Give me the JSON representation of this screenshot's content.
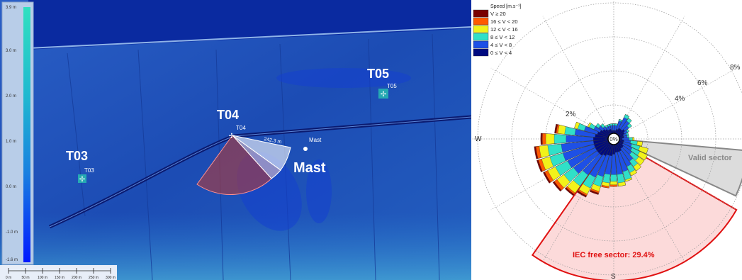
{
  "map": {
    "legend_ticks": [
      "3.0 m",
      "2.0 m",
      "1.0 m",
      "0.0 m",
      "-1.0 m",
      "-1.6 m"
    ],
    "legend_top": "3.9 m",
    "scale_ticks": [
      "0 m",
      "50 m",
      "100 m",
      "150 m",
      "200 m",
      "250 m",
      "300 m"
    ],
    "turbines": [
      {
        "name": "T03",
        "small": "T03"
      },
      {
        "name": "T04",
        "small": "T04"
      },
      {
        "name": "T05",
        "small": "T05"
      }
    ],
    "mast_small": "Mast",
    "mast_label": "Mast",
    "distance_label": "242.3 m",
    "colors": {
      "terrain": "#1e4fb8",
      "water": "#0a2aa0",
      "sector_red": "#c0392b",
      "sector_white": "#ffffff"
    }
  },
  "rose": {
    "legend_title": "Speed [m.s⁻¹]",
    "bins": [
      {
        "label": "V ≥ 20",
        "color": "#7a0000"
      },
      {
        "label": "16 ≤ V < 20",
        "color": "#ff5a00"
      },
      {
        "label": "12 ≤ V < 16",
        "color": "#f2f21a"
      },
      {
        "label": "8 ≤ V < 12",
        "color": "#30e0c8"
      },
      {
        "label": "4 ≤ V < 8",
        "color": "#1e50e6"
      },
      {
        "label": "0 ≤ V < 4",
        "color": "#000a80"
      }
    ],
    "ring_labels": [
      "2%",
      "4%",
      "6%",
      "8%"
    ],
    "center_label": "0%",
    "compass": {
      "W": "W",
      "S": "S"
    },
    "valid_sector_label": "Valid sector",
    "iec_label": "IEC free sector: 29.4%",
    "colors": {
      "iec_fill": "#fcdada",
      "iec_stroke": "#e01010",
      "valid_fill": "#dcdcdc",
      "valid_stroke": "#888888"
    }
  },
  "chart_data": {
    "type": "wind-rose",
    "unit": "%",
    "rings": [
      2,
      4,
      6,
      8
    ],
    "speed_bins": [
      "V ≥ 20",
      "16 ≤ V < 20",
      "12 ≤ V < 16",
      "8 ≤ V < 12",
      "4 ≤ V < 8",
      "0 ≤ V < 4"
    ],
    "directions_deg": [
      0,
      10,
      20,
      30,
      40,
      50,
      60,
      70,
      80,
      90,
      100,
      110,
      120,
      130,
      140,
      150,
      160,
      170,
      180,
      190,
      200,
      210,
      220,
      230,
      240,
      250,
      260,
      270,
      280,
      290,
      300,
      310,
      320,
      330,
      340,
      350
    ],
    "cumulative": {
      "0_4": [
        0.5,
        0.5,
        0.6,
        0.7,
        0.7,
        0.8,
        0.7,
        0.6,
        0.6,
        0.5,
        0.6,
        0.6,
        0.6,
        0.7,
        0.7,
        0.8,
        0.8,
        0.8,
        0.9,
        1.0,
        1.0,
        1.1,
        1.2,
        1.2,
        1.2,
        1.2,
        1.2,
        1.2,
        1.1,
        1.0,
        0.9,
        0.8,
        0.7,
        0.6,
        0.6,
        0.5
      ],
      "4_8": [
        0.8,
        0.8,
        1.1,
        1.4,
        1.3,
        1.1,
        0.9,
        0.8,
        0.8,
        0.9,
        1.0,
        1.1,
        1.2,
        1.3,
        1.6,
        1.8,
        2.0,
        2.1,
        2.1,
        2.1,
        2.3,
        2.5,
        2.6,
        2.9,
        3.0,
        3.1,
        3.1,
        2.8,
        2.3,
        1.8,
        1.3,
        1.1,
        0.9,
        0.8,
        0.8,
        0.8
      ],
      "8_12": [
        0.9,
        0.9,
        1.2,
        1.6,
        1.5,
        1.3,
        1.0,
        0.9,
        0.9,
        1.1,
        1.4,
        1.6,
        1.7,
        1.8,
        2.0,
        2.2,
        2.5,
        2.6,
        2.5,
        2.6,
        2.9,
        3.2,
        3.4,
        3.6,
        3.8,
        3.9,
        3.9,
        3.5,
        2.9,
        2.2,
        1.6,
        1.3,
        1.1,
        0.9,
        0.9,
        0.9
      ],
      "12_16": [
        0.9,
        0.9,
        1.2,
        1.6,
        1.5,
        1.3,
        1.0,
        0.9,
        0.9,
        1.2,
        1.7,
        2.1,
        2.2,
        2.2,
        2.3,
        2.4,
        2.6,
        2.8,
        2.7,
        2.8,
        3.2,
        3.6,
        3.9,
        4.1,
        4.3,
        4.4,
        4.4,
        4.0,
        3.3,
        2.4,
        1.7,
        1.3,
        1.1,
        0.9,
        0.9,
        0.9
      ],
      "16_20": [
        0.9,
        0.9,
        1.2,
        1.6,
        1.5,
        1.3,
        1.0,
        0.9,
        0.9,
        1.2,
        1.7,
        2.1,
        2.2,
        2.2,
        2.3,
        2.4,
        2.6,
        2.8,
        2.8,
        2.9,
        3.3,
        3.7,
        4.0,
        4.3,
        4.5,
        4.6,
        4.6,
        4.2,
        3.4,
        2.4,
        1.7,
        1.3,
        1.1,
        0.9,
        0.9,
        0.9
      ],
      "20_plus": [
        0.9,
        0.9,
        1.2,
        1.6,
        1.5,
        1.3,
        1.0,
        0.9,
        0.9,
        1.2,
        1.7,
        2.1,
        2.2,
        2.2,
        2.3,
        2.4,
        2.6,
        2.8,
        2.8,
        2.9,
        3.4,
        3.8,
        4.1,
        4.4,
        4.6,
        4.7,
        4.7,
        4.3,
        3.5,
        2.4,
        1.7,
        1.3,
        1.1,
        0.9,
        0.9,
        0.9
      ]
    },
    "iec_free_sector": {
      "from_deg": 120,
      "to_deg": 215,
      "percent": 29.4
    },
    "valid_sector": {
      "from_deg": 95,
      "to_deg": 115
    }
  }
}
